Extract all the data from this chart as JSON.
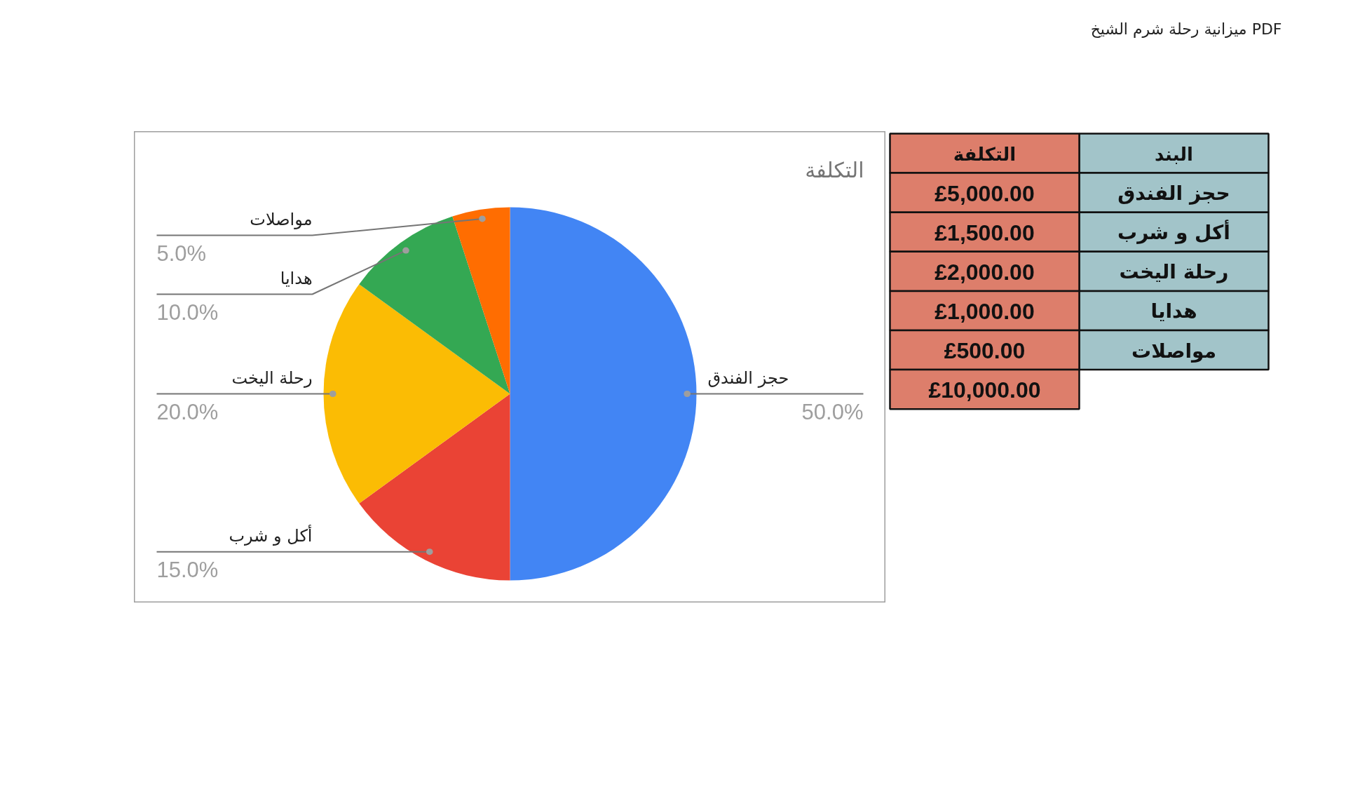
{
  "chart_data": [
    {
      "type": "pie",
      "title": "التكلفة",
      "annotations": [
        "ميزانية رحلة شرم الشيخ PDF"
      ],
      "categories": [
        "حجز الفندق",
        "أكل و شرب",
        "رحلة اليخت",
        "هدايا",
        "مواصلات"
      ],
      "values": [
        50,
        15,
        20,
        10,
        5
      ],
      "value_labels": [
        "50.0%",
        "15.0%",
        "20.0%",
        "10.0%",
        "5.0%"
      ],
      "colors": [
        "#4285f4",
        "#ea4335",
        "#fbbc04",
        "#34a853",
        "#ff6d01"
      ]
    },
    {
      "type": "other",
      "xlabel": "البند",
      "ylabel": "التكلفة",
      "categories": [
        "حجز الفندق",
        "أكل و شرب",
        "رحلة اليخت",
        "هدايا",
        "مواصلات"
      ],
      "values": [
        5000,
        1500,
        2000,
        1000,
        500
      ],
      "value_labels": [
        "£5,000.00",
        "£1,500.00",
        "£2,000.00",
        "£1,000.00",
        "£500.00"
      ],
      "totals": [
        "£10,000.00"
      ],
      "color": "#dd7e6b"
    }
  ]
}
